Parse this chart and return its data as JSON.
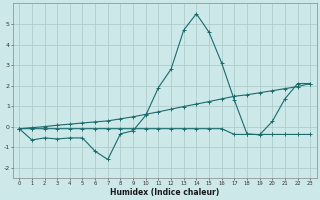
{
  "xlabel": "Humidex (Indice chaleur)",
  "x": [
    0,
    1,
    2,
    3,
    4,
    5,
    6,
    7,
    8,
    9,
    10,
    11,
    12,
    13,
    14,
    15,
    16,
    17,
    18,
    19,
    20,
    21,
    22,
    23
  ],
  "curve1": [
    -0.1,
    -0.65,
    -0.55,
    -0.6,
    -0.55,
    -0.55,
    -1.2,
    -1.6,
    -0.35,
    -0.2,
    0.55,
    1.9,
    2.8,
    4.7,
    5.5,
    4.6,
    3.1,
    1.3,
    -0.35,
    -0.4,
    0.25,
    1.35,
    2.1,
    2.1
  ],
  "curve2": [
    -0.1,
    -0.05,
    0.0,
    0.07,
    0.12,
    0.18,
    0.23,
    0.28,
    0.38,
    0.48,
    0.6,
    0.72,
    0.85,
    0.98,
    1.1,
    1.22,
    1.35,
    1.48,
    1.55,
    1.65,
    1.75,
    1.85,
    1.95,
    2.1
  ],
  "curve3": [
    -0.1,
    -0.1,
    -0.1,
    -0.1,
    -0.1,
    -0.1,
    -0.1,
    -0.1,
    -0.1,
    -0.1,
    -0.1,
    -0.1,
    -0.1,
    -0.1,
    -0.1,
    -0.1,
    -0.1,
    -0.38,
    -0.38,
    -0.38,
    -0.38,
    -0.38,
    -0.38,
    -0.38
  ],
  "bg_color": "#cce8e8",
  "grid_major_color": "#b0cccc",
  "line_color": "#1a6b6b",
  "ylim": [
    -2.5,
    6.0
  ],
  "xlim": [
    -0.5,
    23.5
  ],
  "yticks": [
    -2,
    -1,
    0,
    1,
    2,
    3,
    4,
    5
  ],
  "xtick_labels": [
    "0",
    "1",
    "2",
    "3",
    "4",
    "5",
    "6",
    "7",
    "8",
    "9",
    "10",
    "11",
    "12",
    "13",
    "14",
    "15",
    "16",
    "17",
    "18",
    "19",
    "20",
    "21",
    "22",
    "23"
  ]
}
